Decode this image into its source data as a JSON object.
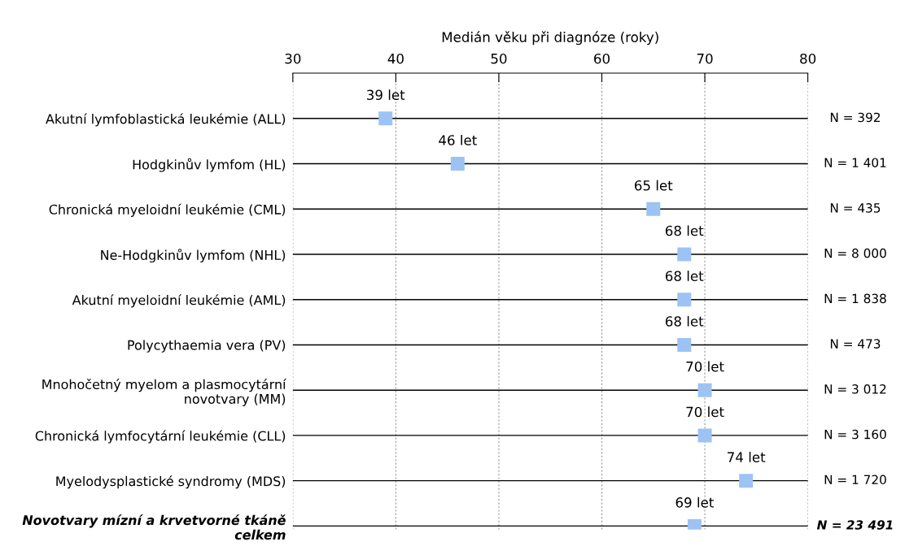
{
  "chart_data": {
    "type": "scatter",
    "orientation": "horizontal",
    "xlabel": "Medián věku při diagnóze (roky)",
    "categories": [
      "Akutní lymfoblastická leukémie (ALL)",
      "Hodgkinův lymfom (HL)",
      "Chronická myeloidní leukémie (CML)",
      "Ne-Hodgkinův lymfom (NHL)",
      "Akutní myeloidní leukémie (AML)",
      "Polycythaemia vera (PV)",
      "Mnohočetný myelom a plasmocytární\nnovotvary (MM)",
      "Chronická lymfocytární leukémie (CLL)",
      "Myelodysplastické syndromy (MDS)",
      "Novotvary mízní a krvetvorné tkáně\ncelkem"
    ],
    "values": [
      39,
      46,
      65,
      68,
      68,
      68,
      70,
      70,
      74,
      69
    ],
    "value_labels": [
      "39 let",
      "46 let",
      "65 let",
      "68 let",
      "68 let",
      "68 let",
      "70 let",
      "70 let",
      "74 let",
      "69 let"
    ],
    "color": "#9dc3f5",
    "marker": "square",
    "xlim": [
      30,
      80
    ],
    "xticks": [
      30,
      40,
      50,
      60,
      70,
      80
    ],
    "grid": true,
    "annotations": [
      "N = 392",
      "N = 1 401",
      "N = 435",
      "N = 8 000",
      "N = 1 838",
      "N = 473",
      "N = 3 012",
      "N = 3 160",
      "N = 1 720",
      "N = 23 491"
    ]
  }
}
